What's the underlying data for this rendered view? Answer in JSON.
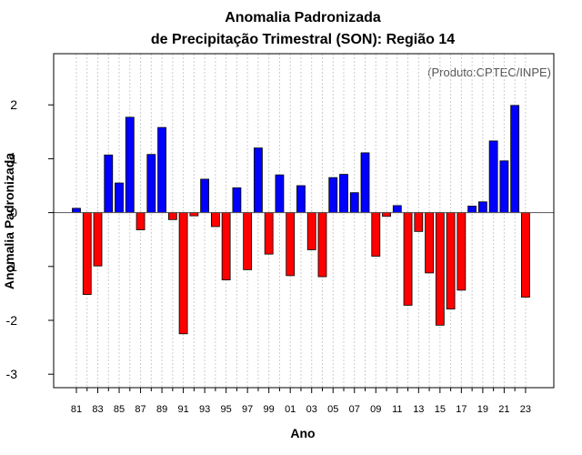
{
  "chart_data": {
    "type": "bar",
    "title": "Anomalia Padronizada",
    "subtitle": "de Precipitação Trimestral (SON): Região 14",
    "xlabel": "Ano",
    "ylabel": "Anomalia Padronizada",
    "credit": "(Produto:CPTEC/INPE)",
    "ylim": [
      -3.25,
      2.95
    ],
    "yticks": [
      -3,
      -2,
      -1,
      0,
      1,
      2
    ],
    "ytick_labels": [
      "-3",
      "-2",
      "-1",
      "0",
      "1",
      "2"
    ],
    "categories": [
      1981,
      1982,
      1983,
      1984,
      1985,
      1986,
      1987,
      1988,
      1989,
      1990,
      1991,
      1992,
      1993,
      1994,
      1995,
      1996,
      1997,
      1998,
      1999,
      2000,
      2001,
      2002,
      2003,
      2004,
      2005,
      2006,
      2007,
      2008,
      2009,
      2010,
      2011,
      2012,
      2013,
      2014,
      2015,
      2016,
      2017,
      2018,
      2019,
      2020,
      2021,
      2022,
      2023
    ],
    "xtick_labels": [
      "81",
      "83",
      "85",
      "87",
      "89",
      "91",
      "93",
      "95",
      "97",
      "99",
      "01",
      "03",
      "05",
      "07",
      "09",
      "11",
      "13",
      "15",
      "17",
      "19",
      "21",
      "23"
    ],
    "values": [
      0.08,
      -1.52,
      -0.99,
      1.07,
      0.55,
      1.77,
      -0.32,
      1.08,
      1.58,
      -0.13,
      -2.25,
      -0.06,
      0.62,
      -0.26,
      -1.25,
      0.46,
      -1.06,
      1.2,
      -0.77,
      0.7,
      -1.17,
      0.5,
      -0.69,
      -1.19,
      0.65,
      0.71,
      0.37,
      1.11,
      -0.81,
      -0.07,
      0.13,
      -1.72,
      -0.35,
      -1.12,
      -2.09,
      -1.79,
      -1.44,
      0.12,
      0.2,
      1.33,
      0.96,
      1.99,
      -1.57
    ],
    "colors": {
      "positive": "#0000ff",
      "negative": "#ff0000",
      "grid": "#cccccc",
      "zero_line": "#555555"
    },
    "grid": "vertical dotted"
  }
}
